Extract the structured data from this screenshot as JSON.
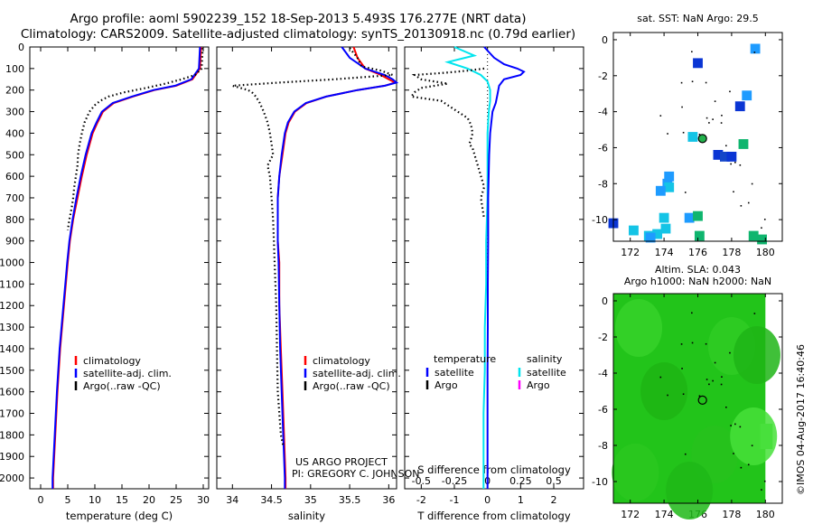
{
  "header": {
    "title_line1": "Argo profile: aoml 5902239_152 18-Sep-2013 5.493S 176.277E (NRT data)",
    "title_line2": "Climatology: CARS2009. Satellite-adjusted climatology: synTS_20130918.nc (0.79d earlier)"
  },
  "footer": {
    "imos": "©IMOS 04-Aug-2017 16:40:46",
    "project_line1": "US ARGO PROJECT",
    "project_line2": "PI: GREGORY C. JOHNSON"
  },
  "colors": {
    "climatology": "#ff0000",
    "satellite": "#0000ff",
    "argo": "#000000",
    "sal_satellite": "#00e5ee",
    "sal_argo": "#ff00ff",
    "sla_green": "#22c41a"
  },
  "chart_data": [
    {
      "id": "temperature",
      "type": "line",
      "xlabel": "temperature (deg C)",
      "ylabel": "",
      "xlim": [
        -2,
        31
      ],
      "ylim": [
        2050,
        0
      ],
      "xticks": [
        "0",
        "5",
        "10",
        "15",
        "20",
        "25",
        "30"
      ],
      "xtick_values": [
        0,
        5,
        10,
        15,
        20,
        25,
        30
      ],
      "yticks": [
        "0",
        "100",
        "200",
        "300",
        "400",
        "500",
        "600",
        "700",
        "800",
        "900",
        "1000",
        "1100",
        "1200",
        "1300",
        "1400",
        "1500",
        "1600",
        "1700",
        "1800",
        "1900",
        "2000"
      ],
      "ytick_values": [
        0,
        100,
        200,
        300,
        400,
        500,
        600,
        700,
        800,
        900,
        1000,
        1100,
        1200,
        1300,
        1400,
        1500,
        1600,
        1700,
        1800,
        1900,
        2000
      ],
      "legend": [
        "climatology",
        "satellite-adj. clim.",
        "Argo(..raw -QC)"
      ],
      "series": [
        {
          "name": "climatology",
          "depth": [
            0,
            100,
            150,
            180,
            200,
            230,
            260,
            300,
            350,
            400,
            500,
            600,
            700,
            800,
            900,
            1000,
            1200,
            1400,
            1600,
            1800,
            2000,
            2050
          ],
          "values": [
            29.6,
            29.4,
            28,
            25,
            21,
            17,
            13.5,
            11.5,
            10.5,
            9.6,
            8.5,
            7.6,
            6.8,
            6,
            5.4,
            5,
            4.3,
            3.6,
            3.1,
            2.7,
            2.3,
            2.3
          ]
        },
        {
          "name": "satellite",
          "depth": [
            0,
            100,
            150,
            180,
            200,
            230,
            260,
            300,
            350,
            400,
            500,
            600,
            700,
            800,
            900,
            1000,
            1200,
            1400,
            1600,
            1800,
            2000,
            2050
          ],
          "values": [
            29.4,
            29.2,
            27.8,
            24.8,
            20.8,
            16.8,
            13.3,
            11.3,
            10.3,
            9.4,
            8.3,
            7.4,
            6.6,
            5.9,
            5.3,
            4.9,
            4.2,
            3.5,
            3.0,
            2.6,
            2.2,
            2.2
          ]
        },
        {
          "name": "Argo",
          "depth": [
            5,
            100,
            130,
            150,
            170,
            190,
            210,
            230,
            250,
            270,
            300,
            350,
            400,
            450,
            500,
            550,
            600,
            650,
            700,
            750,
            800,
            850
          ],
          "values": [
            29.9,
            29.7,
            28.5,
            26,
            23,
            19.5,
            15.5,
            12.5,
            11,
            10,
            9,
            8.1,
            7.6,
            7.2,
            6.9,
            6.8,
            6.5,
            6.2,
            6,
            5.7,
            5.3,
            5
          ]
        }
      ]
    },
    {
      "id": "salinity",
      "type": "line",
      "xlabel": "salinity",
      "xlim": [
        33.8,
        36.1
      ],
      "ylim": [
        2050,
        0
      ],
      "xticks": [
        "34",
        "34.5",
        "35",
        "35.5",
        "36"
      ],
      "xtick_values": [
        34,
        34.5,
        35,
        35.5,
        36
      ],
      "legend": [
        "climatology",
        "satellite-adj. clim.",
        "Argo(..raw -QC)"
      ],
      "series": [
        {
          "name": "climatology",
          "depth": [
            0,
            50,
            100,
            130,
            150,
            165,
            180,
            200,
            230,
            260,
            300,
            350,
            400,
            500,
            600,
            700,
            800,
            900,
            1000,
            1200,
            1400,
            1600,
            1800,
            2000,
            2050
          ],
          "values": [
            35.55,
            35.6,
            35.7,
            35.9,
            36.0,
            36.08,
            35.95,
            35.6,
            35.2,
            34.95,
            34.8,
            34.72,
            34.68,
            34.64,
            34.6,
            34.58,
            34.58,
            34.58,
            34.6,
            34.6,
            34.62,
            34.64,
            34.66,
            34.68,
            34.68
          ]
        },
        {
          "name": "satellite",
          "depth": [
            0,
            50,
            100,
            130,
            150,
            165,
            180,
            200,
            230,
            260,
            300,
            350,
            400,
            500,
            600,
            700,
            800,
            900,
            1000,
            1200,
            1400,
            1600,
            1800,
            2000,
            2050
          ],
          "values": [
            35.4,
            35.5,
            35.7,
            35.95,
            36.05,
            36.1,
            35.95,
            35.6,
            35.2,
            34.94,
            34.79,
            34.71,
            34.67,
            34.63,
            34.6,
            34.58,
            34.58,
            34.58,
            34.59,
            34.6,
            34.61,
            34.63,
            34.65,
            34.67,
            34.67
          ]
        },
        {
          "name": "Argo",
          "depth": [
            5,
            50,
            90,
            110,
            130,
            150,
            165,
            180,
            190,
            200,
            210,
            230,
            260,
            300,
            350,
            400,
            450,
            500,
            550,
            600,
            700,
            800,
            900,
            1000,
            1100,
            1200,
            1400,
            1600,
            1700,
            1800,
            1850
          ],
          "values": [
            35.5,
            35.6,
            35.65,
            35.9,
            36.05,
            35.3,
            34.6,
            34.0,
            34.1,
            34.2,
            34.25,
            34.3,
            34.35,
            34.4,
            34.45,
            34.48,
            34.5,
            34.52,
            34.45,
            34.48,
            34.5,
            34.52,
            34.53,
            34.54,
            34.55,
            34.56,
            34.57,
            34.58,
            34.6,
            34.62,
            34.65
          ]
        }
      ]
    },
    {
      "id": "difference",
      "type": "line",
      "xlabel": "T difference from climatology",
      "xlabel_top": "S difference from climatology",
      "xlim": [
        -2.5,
        2.9
      ],
      "ylim": [
        2050,
        0
      ],
      "xticks": [
        "-2",
        "-1",
        "0",
        "1",
        "2"
      ],
      "xtick_values": [
        -2,
        -1,
        0,
        1,
        2
      ],
      "xticks_sal": [
        "-0.5",
        "-0.25",
        "0",
        "0.25",
        "0.5"
      ],
      "xtick_sal_values": [
        -0.5,
        -0.25,
        0,
        0.25,
        0.5
      ],
      "legend_temperature_title": "temperature",
      "legend_salinity_title": "salinity",
      "legend_temperature": [
        "satellite",
        "Argo"
      ],
      "legend_salinity": [
        "satellite",
        "Argo"
      ],
      "series": [
        {
          "name": "T satellite",
          "depth": [
            0,
            50,
            80,
            100,
            115,
            130,
            150,
            180,
            220,
            260,
            300,
            400,
            500,
            700,
            900,
            1100,
            1300,
            1500,
            1700,
            1900,
            2050
          ],
          "values": [
            -0.1,
            0.2,
            0.5,
            0.9,
            1.1,
            1.0,
            0.5,
            0.35,
            0.3,
            0.25,
            0.15,
            0.08,
            0.05,
            0.02,
            0.02,
            0.01,
            0.01,
            0.0,
            0.0,
            0.0,
            0.0
          ]
        },
        {
          "name": "S satellite",
          "depth": [
            0,
            40,
            70,
            100,
            130,
            160,
            200,
            250,
            300,
            400,
            500,
            700,
            900,
            1100,
            1300,
            1500,
            1700,
            1900,
            2050
          ],
          "values": [
            -0.25,
            -0.1,
            -0.3,
            -0.15,
            -0.05,
            0.0,
            0.02,
            0.02,
            0.01,
            0.0,
            0.0,
            0.0,
            -0.01,
            -0.01,
            -0.02,
            -0.02,
            -0.03,
            -0.03,
            -0.03
          ]
        },
        {
          "name": "T Argo",
          "depth": [
            100,
            110,
            120,
            130,
            150,
            170,
            190,
            210,
            230,
            250,
            300,
            330,
            360,
            400,
            430,
            450,
            470,
            650,
            700,
            750,
            800
          ],
          "values": [
            -0.1,
            -0.6,
            -1.3,
            -2.2,
            -2.0,
            -1.2,
            -2.0,
            -2.2,
            -2.3,
            -1.4,
            -0.9,
            -0.6,
            -0.5,
            -0.45,
            -0.5,
            -0.55,
            -0.45,
            -0.1,
            -0.2,
            -0.15,
            -0.1
          ]
        }
      ]
    },
    {
      "id": "sst_map",
      "type": "heatmap",
      "title": "sat. SST: NaN Argo: 29.5",
      "xlim": [
        171,
        181
      ],
      "ylim": [
        -11.2,
        0.4
      ],
      "xticks": [
        "172",
        "174",
        "176",
        "178",
        "180"
      ],
      "xtick_values": [
        172,
        174,
        176,
        178,
        180
      ],
      "yticks": [
        "0",
        "-2",
        "-4",
        "-6",
        "-8",
        "-10"
      ],
      "ytick_values": [
        0,
        -2,
        -4,
        -6,
        -8,
        -10
      ],
      "profile_marker": {
        "lon": 176.277,
        "lat": -5.493
      },
      "cells": [
        {
          "lon": 179.4,
          "lat": -0.5,
          "color": "#1e9bff"
        },
        {
          "lon": 176.0,
          "lat": -1.3,
          "color": "#0a35d4"
        },
        {
          "lon": 178.9,
          "lat": -3.1,
          "color": "#1e9bff"
        },
        {
          "lon": 178.5,
          "lat": -3.7,
          "color": "#0a35d4"
        },
        {
          "lon": 175.7,
          "lat": -5.4,
          "color": "#14c4e6"
        },
        {
          "lon": 178.7,
          "lat": -5.8,
          "color": "#0fb56e"
        },
        {
          "lon": 177.2,
          "lat": -6.4,
          "color": "#0a35d4"
        },
        {
          "lon": 177.6,
          "lat": -6.5,
          "color": "#1446c8"
        },
        {
          "lon": 178.0,
          "lat": -6.5,
          "color": "#0a35d4"
        },
        {
          "lon": 174.3,
          "lat": -7.6,
          "color": "#1e9bff"
        },
        {
          "lon": 174.2,
          "lat": -8.0,
          "color": "#1e9bff"
        },
        {
          "lon": 174.3,
          "lat": -8.2,
          "color": "#14c4e6"
        },
        {
          "lon": 173.8,
          "lat": -8.4,
          "color": "#1e9bff"
        },
        {
          "lon": 174.0,
          "lat": -9.9,
          "color": "#14c4e6"
        },
        {
          "lon": 175.5,
          "lat": -9.9,
          "color": "#1e9bff"
        },
        {
          "lon": 176.0,
          "lat": -9.8,
          "color": "#0fb56e"
        },
        {
          "lon": 174.1,
          "lat": -10.5,
          "color": "#14c4e6"
        },
        {
          "lon": 172.2,
          "lat": -10.6,
          "color": "#14c4e6"
        },
        {
          "lon": 173.6,
          "lat": -10.8,
          "color": "#14c4e6"
        },
        {
          "lon": 173.1,
          "lat": -10.9,
          "color": "#14c4e6"
        },
        {
          "lon": 173.2,
          "lat": -11.0,
          "color": "#1e9bff"
        },
        {
          "lon": 176.1,
          "lat": -10.9,
          "color": "#0fb56e"
        },
        {
          "lon": 179.3,
          "lat": -10.9,
          "color": "#0fb56e"
        },
        {
          "lon": 171.0,
          "lat": -10.2,
          "color": "#0a35d4"
        },
        {
          "lon": 179.8,
          "lat": -11.1,
          "color": "#0fb56e"
        }
      ]
    },
    {
      "id": "sla_map",
      "type": "heatmap",
      "title_line1": "Altim. SLA: 0.043",
      "title_line2": "Argo h1000: NaN h2000: NaN",
      "xlim": [
        171,
        181
      ],
      "ylim": [
        -11.2,
        0.4
      ],
      "xticks": [
        "172",
        "174",
        "176",
        "178",
        "180"
      ],
      "xtick_values": [
        172,
        174,
        176,
        178,
        180
      ],
      "yticks": [
        "0",
        "-2",
        "-4",
        "-6",
        "-8",
        "-10"
      ],
      "ytick_values": [
        0,
        -2,
        -4,
        -6,
        -8,
        -10
      ],
      "profile_marker": {
        "lon": 176.277,
        "lat": -5.493
      }
    }
  ]
}
